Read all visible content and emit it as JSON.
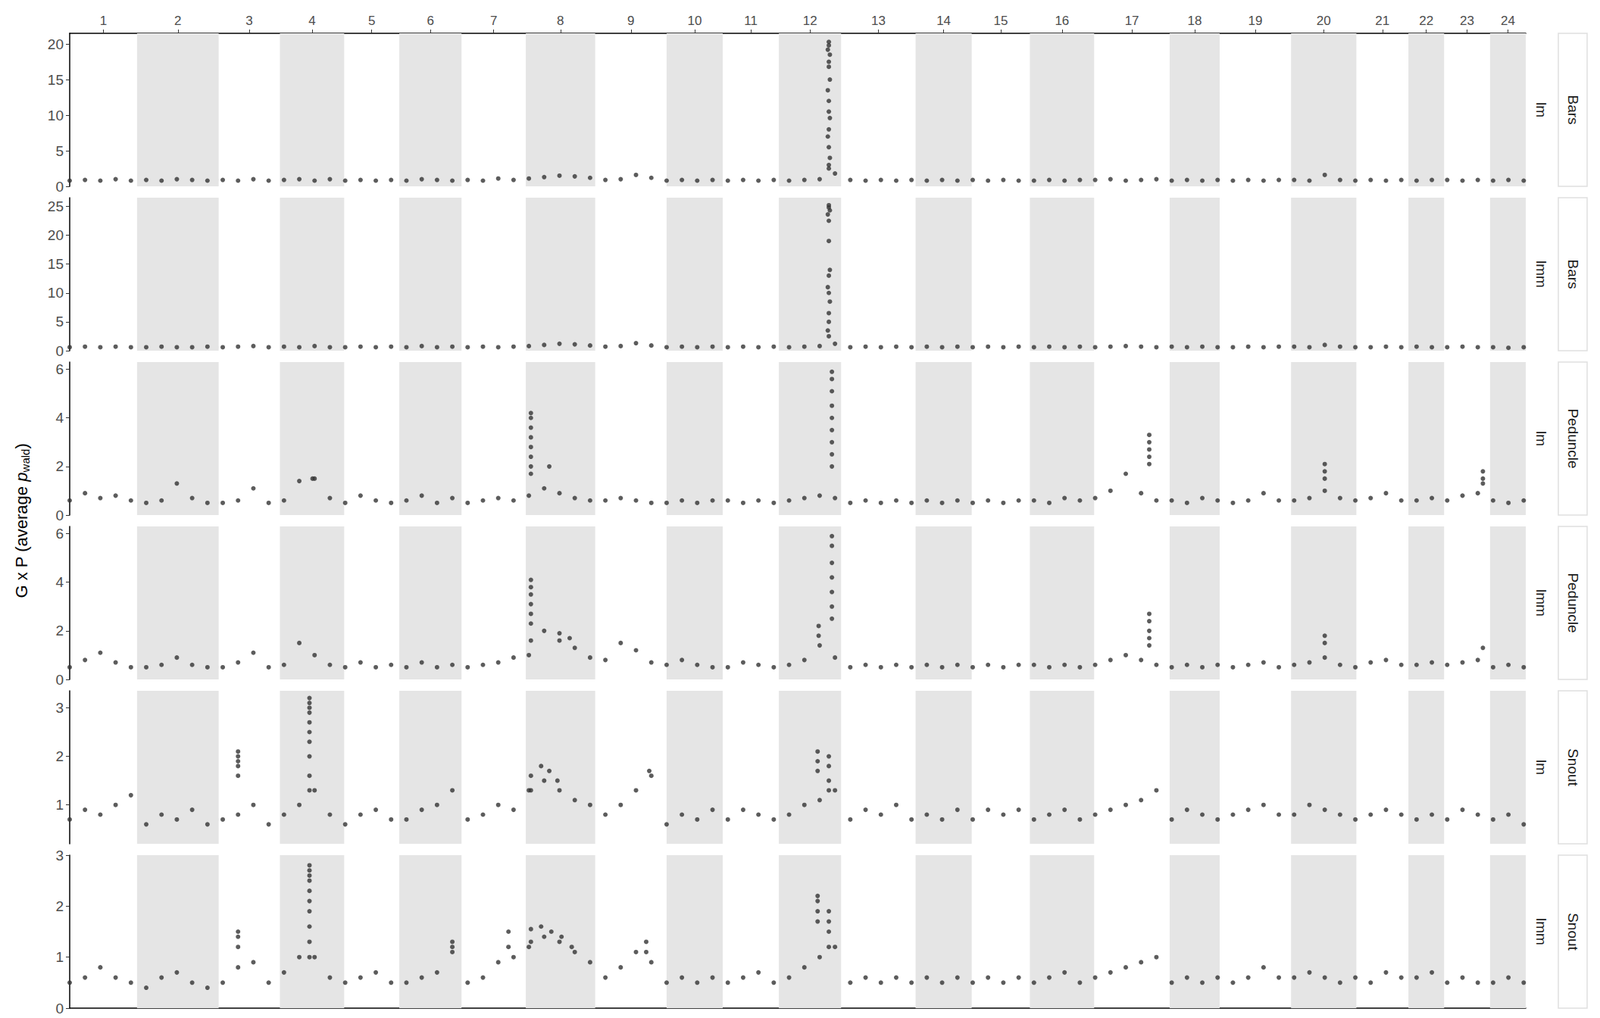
{
  "chart_data": {
    "type": "scatter",
    "ylabel": {
      "text": "G x P (average ",
      "italic": "p",
      "subscript": "wald",
      "close": ")"
    },
    "color": "#333333",
    "marker": "circle",
    "grid": false,
    "xlim": [
      0,
      1427
    ],
    "chromosomes": [
      {
        "label": "1",
        "start": 0,
        "end": 66
      },
      {
        "label": "2",
        "start": 66,
        "end": 146
      },
      {
        "label": "3",
        "start": 146,
        "end": 206
      },
      {
        "label": "4",
        "start": 206,
        "end": 269
      },
      {
        "label": "5",
        "start": 269,
        "end": 323
      },
      {
        "label": "6",
        "start": 323,
        "end": 384
      },
      {
        "label": "7",
        "start": 384,
        "end": 447
      },
      {
        "label": "8",
        "start": 447,
        "end": 515
      },
      {
        "label": "9",
        "start": 515,
        "end": 585
      },
      {
        "label": "10",
        "start": 585,
        "end": 640
      },
      {
        "label": "11",
        "start": 640,
        "end": 695
      },
      {
        "label": "12",
        "start": 695,
        "end": 756
      },
      {
        "label": "13",
        "start": 756,
        "end": 829
      },
      {
        "label": "14",
        "start": 829,
        "end": 884
      },
      {
        "label": "15",
        "start": 884,
        "end": 941
      },
      {
        "label": "16",
        "start": 941,
        "end": 1004
      },
      {
        "label": "17",
        "start": 1004,
        "end": 1078
      },
      {
        "label": "18",
        "start": 1078,
        "end": 1127
      },
      {
        "label": "19",
        "start": 1127,
        "end": 1197
      },
      {
        "label": "20",
        "start": 1197,
        "end": 1261
      },
      {
        "label": "21",
        "start": 1261,
        "end": 1312
      },
      {
        "label": "22",
        "start": 1312,
        "end": 1347
      },
      {
        "label": "23",
        "start": 1347,
        "end": 1392
      },
      {
        "label": "24",
        "start": 1392,
        "end": 1427
      }
    ],
    "x": [
      0,
      15,
      30,
      45,
      60,
      75,
      90,
      105,
      120,
      135,
      150,
      165,
      180,
      195,
      210,
      225,
      240,
      255,
      270,
      285,
      300,
      315,
      330,
      345,
      360,
      375,
      390,
      405,
      420,
      435,
      450,
      465,
      480,
      495,
      510,
      525,
      540,
      555,
      570,
      585,
      600,
      615,
      630,
      645,
      660,
      675,
      690,
      705,
      720,
      735,
      750,
      765,
      780,
      795,
      810,
      825,
      840,
      855,
      870,
      885,
      900,
      915,
      930,
      945,
      960,
      975,
      990,
      1005,
      1020,
      1035,
      1050,
      1065,
      1080,
      1095,
      1110,
      1125,
      1140,
      1155,
      1170,
      1185,
      1200,
      1215,
      1230,
      1245,
      1260,
      1275,
      1290,
      1305,
      1320,
      1335,
      1350,
      1365,
      1380,
      1395,
      1410,
      1425
    ],
    "panels": [
      {
        "trait": "Bars",
        "model": "lm",
        "ylim": [
          0,
          21.5
        ],
        "yticks": [
          0,
          5,
          10,
          15,
          20
        ],
        "values": [
          0.8,
          0.9,
          0.8,
          1.0,
          0.8,
          0.9,
          0.8,
          1.0,
          0.9,
          0.8,
          0.9,
          0.8,
          1.0,
          0.8,
          0.9,
          1.0,
          0.8,
          1.0,
          0.8,
          0.9,
          0.8,
          0.9,
          0.8,
          1.0,
          0.9,
          0.8,
          0.9,
          0.8,
          1.1,
          0.9,
          1.1,
          1.3,
          1.5,
          1.4,
          1.2,
          0.9,
          1.0,
          1.6,
          1.2,
          0.8,
          0.9,
          0.8,
          0.9,
          0.8,
          0.9,
          0.8,
          0.9,
          0.8,
          0.9,
          1.0,
          1.8,
          0.9,
          0.8,
          0.9,
          0.8,
          0.9,
          0.8,
          0.9,
          0.8,
          0.9,
          0.8,
          0.9,
          0.8,
          0.8,
          0.9,
          0.8,
          0.9,
          0.9,
          1.0,
          0.8,
          0.9,
          1.0,
          0.8,
          0.9,
          0.8,
          0.9,
          0.8,
          0.9,
          0.8,
          0.9,
          0.9,
          0.8,
          1.6,
          0.9,
          0.8,
          0.9,
          0.8,
          0.9,
          0.8,
          0.9,
          0.9,
          0.8,
          0.9,
          0.8,
          0.9,
          0.8
        ],
        "peaks": {
          "x": [
            744,
            744,
            743,
            745,
            744,
            744,
            745,
            743,
            744,
            744,
            745,
            744,
            743,
            744,
            745,
            744,
            744
          ],
          "values": [
            20.3,
            19.8,
            19.2,
            18.5,
            17.5,
            16.8,
            15,
            13.5,
            12,
            10.5,
            9.6,
            8,
            7,
            5.5,
            4,
            3,
            2.5
          ]
        }
      },
      {
        "trait": "Bars",
        "model": "lmm",
        "ylim": [
          0,
          26.5
        ],
        "yticks": [
          0,
          5,
          10,
          15,
          20,
          25
        ],
        "values": [
          0.6,
          0.7,
          0.6,
          0.7,
          0.6,
          0.6,
          0.7,
          0.6,
          0.6,
          0.7,
          0.6,
          0.7,
          0.8,
          0.6,
          0.7,
          0.6,
          0.8,
          0.6,
          0.6,
          0.7,
          0.6,
          0.7,
          0.6,
          0.8,
          0.6,
          0.7,
          0.6,
          0.7,
          0.6,
          0.7,
          0.8,
          1.0,
          1.2,
          1.1,
          0.9,
          0.7,
          0.8,
          1.3,
          0.9,
          0.6,
          0.7,
          0.6,
          0.7,
          0.6,
          0.7,
          0.6,
          0.7,
          0.6,
          0.7,
          0.8,
          1.2,
          0.6,
          0.7,
          0.6,
          0.7,
          0.6,
          0.7,
          0.6,
          0.7,
          0.6,
          0.7,
          0.6,
          0.7,
          0.6,
          0.7,
          0.6,
          0.7,
          0.6,
          0.7,
          0.8,
          0.7,
          0.6,
          0.7,
          0.6,
          0.7,
          0.6,
          0.6,
          0.7,
          0.6,
          0.7,
          0.7,
          0.6,
          1.0,
          0.7,
          0.6,
          0.6,
          0.7,
          0.6,
          0.7,
          0.6,
          0.6,
          0.7,
          0.6,
          0.6,
          0.5,
          0.6
        ],
        "peaks": {
          "x": [
            744,
            744,
            745,
            743,
            744,
            744,
            745,
            744,
            743,
            744,
            745,
            744,
            744,
            743,
            744
          ],
          "values": [
            25.2,
            24.8,
            24.3,
            23.6,
            22.5,
            19,
            14,
            13,
            11,
            10,
            8.5,
            6.5,
            5,
            3.5,
            2.5
          ]
        }
      },
      {
        "trait": "Peduncle",
        "model": "lm",
        "ylim": [
          0,
          6.3
        ],
        "yticks": [
          0,
          2,
          4,
          6
        ],
        "values": [
          0.6,
          0.9,
          0.7,
          0.8,
          0.6,
          0.5,
          0.6,
          1.3,
          0.7,
          0.5,
          0.5,
          0.6,
          1.1,
          0.5,
          0.6,
          1.4,
          1.5,
          0.7,
          0.5,
          0.8,
          0.6,
          0.5,
          0.6,
          0.8,
          0.5,
          0.7,
          0.5,
          0.6,
          0.7,
          0.6,
          0.8,
          1.1,
          0.9,
          0.7,
          0.6,
          0.6,
          0.7,
          0.6,
          0.5,
          0.5,
          0.6,
          0.5,
          0.6,
          0.6,
          0.5,
          0.6,
          0.5,
          0.6,
          0.7,
          0.8,
          0.7,
          0.5,
          0.6,
          0.5,
          0.6,
          0.5,
          0.6,
          0.5,
          0.6,
          0.5,
          0.6,
          0.5,
          0.6,
          0.6,
          0.5,
          0.7,
          0.6,
          0.7,
          1.0,
          1.7,
          0.9,
          0.6,
          0.6,
          0.5,
          0.7,
          0.6,
          0.5,
          0.6,
          0.9,
          0.6,
          0.6,
          0.7,
          1.0,
          0.7,
          0.6,
          0.7,
          0.9,
          0.6,
          0.6,
          0.7,
          0.6,
          0.8,
          0.9,
          0.6,
          0.5,
          0.6
        ],
        "peaks": {
          "x": [
            452,
            452,
            452,
            452,
            452,
            452,
            452,
            452,
            470,
            747,
            747,
            747,
            747,
            747,
            747,
            747,
            747,
            747,
            1058,
            1058,
            1058,
            1058,
            1058,
            1230,
            1230,
            1230,
            1385,
            1385,
            1385,
            238
          ],
          "values": [
            4.2,
            4.0,
            3.6,
            3.2,
            2.8,
            2.4,
            2.0,
            1.7,
            2.0,
            5.9,
            5.6,
            5.1,
            4.5,
            4.0,
            3.5,
            3.0,
            2.5,
            2.0,
            3.3,
            3.0,
            2.7,
            2.4,
            2.1,
            2.1,
            1.8,
            1.5,
            1.8,
            1.5,
            1.3,
            1.5
          ]
        }
      },
      {
        "trait": "Peduncle",
        "model": "lmm",
        "ylim": [
          0,
          6.3
        ],
        "yticks": [
          0,
          2,
          4,
          6
        ],
        "values": [
          0.5,
          0.8,
          1.1,
          0.7,
          0.5,
          0.5,
          0.6,
          0.9,
          0.6,
          0.5,
          0.5,
          0.7,
          1.1,
          0.5,
          0.6,
          1.5,
          1.0,
          0.6,
          0.5,
          0.7,
          0.5,
          0.6,
          0.5,
          0.7,
          0.5,
          0.6,
          0.5,
          0.6,
          0.7,
          0.9,
          1.0,
          2.0,
          1.6,
          1.3,
          0.9,
          0.8,
          1.5,
          1.2,
          0.7,
          0.6,
          0.8,
          0.6,
          0.5,
          0.5,
          0.7,
          0.6,
          0.5,
          0.6,
          0.8,
          1.4,
          0.9,
          0.5,
          0.6,
          0.5,
          0.6,
          0.5,
          0.6,
          0.5,
          0.6,
          0.5,
          0.6,
          0.5,
          0.6,
          0.6,
          0.5,
          0.6,
          0.5,
          0.6,
          0.8,
          1.0,
          0.8,
          0.6,
          0.5,
          0.6,
          0.5,
          0.6,
          0.5,
          0.6,
          0.7,
          0.5,
          0.6,
          0.7,
          0.9,
          0.6,
          0.5,
          0.7,
          0.8,
          0.6,
          0.6,
          0.7,
          0.6,
          0.7,
          0.8,
          0.5,
          0.6,
          0.5
        ],
        "peaks": {
          "x": [
            452,
            452,
            452,
            452,
            452,
            452,
            452,
            734,
            734,
            747,
            747,
            747,
            747,
            747,
            747,
            747,
            1058,
            1058,
            1058,
            1058,
            1058,
            1230,
            1230,
            1385,
            480,
            490
          ],
          "values": [
            4.1,
            3.8,
            3.5,
            3.1,
            2.7,
            2.3,
            1.6,
            2.2,
            1.8,
            5.9,
            5.5,
            4.8,
            4.2,
            3.6,
            3.0,
            2.5,
            2.7,
            2.4,
            2.0,
            1.7,
            1.4,
            1.8,
            1.5,
            1.3,
            1.9,
            1.7
          ]
        }
      },
      {
        "trait": "Snout",
        "model": "lm",
        "ylim": [
          0.2,
          3.35
        ],
        "yticks": [
          1,
          2,
          3
        ],
        "values": [
          0.7,
          0.9,
          0.8,
          1.0,
          1.2,
          0.6,
          0.8,
          0.7,
          0.9,
          0.6,
          0.7,
          0.8,
          1.0,
          0.6,
          0.8,
          1.0,
          1.3,
          0.8,
          0.6,
          0.8,
          0.9,
          0.7,
          0.7,
          0.9,
          1.0,
          1.3,
          0.7,
          0.8,
          1.0,
          0.9,
          1.3,
          1.5,
          1.3,
          1.1,
          1.0,
          0.8,
          1.0,
          1.3,
          1.6,
          0.6,
          0.8,
          0.7,
          0.9,
          0.7,
          0.9,
          0.8,
          0.7,
          0.8,
          1.0,
          1.1,
          1.3,
          0.7,
          0.9,
          0.8,
          1.0,
          0.7,
          0.8,
          0.7,
          0.9,
          0.7,
          0.9,
          0.8,
          0.9,
          0.7,
          0.8,
          0.9,
          0.7,
          0.8,
          0.9,
          1.0,
          1.1,
          1.3,
          0.7,
          0.9,
          0.8,
          0.7,
          0.8,
          0.9,
          1.0,
          0.8,
          0.8,
          1.0,
          0.9,
          0.8,
          0.7,
          0.8,
          0.9,
          0.8,
          0.7,
          0.8,
          0.7,
          0.9,
          0.8,
          0.7,
          0.8,
          0.6
        ],
        "peaks": {
          "x": [
            165,
            165,
            165,
            165,
            165,
            235,
            235,
            235,
            235,
            235,
            235,
            235,
            235,
            235,
            235,
            452,
            452,
            462,
            470,
            478,
            568,
            733,
            733,
            733,
            744,
            744,
            744,
            744
          ],
          "values": [
            2.1,
            2.0,
            1.9,
            1.8,
            1.6,
            3.2,
            3.1,
            3.0,
            2.9,
            2.7,
            2.5,
            2.3,
            2.0,
            1.6,
            1.3,
            1.6,
            1.3,
            1.8,
            1.7,
            1.5,
            1.7,
            2.1,
            1.9,
            1.7,
            2.0,
            1.8,
            1.5,
            1.3
          ]
        }
      },
      {
        "trait": "Snout",
        "model": "lmm",
        "ylim": [
          0,
          3
        ],
        "yticks": [
          0,
          1,
          2,
          3
        ],
        "values": [
          0.5,
          0.6,
          0.8,
          0.6,
          0.5,
          0.4,
          0.6,
          0.7,
          0.5,
          0.4,
          0.5,
          0.8,
          0.9,
          0.5,
          0.7,
          1.0,
          1.0,
          0.6,
          0.5,
          0.6,
          0.7,
          0.5,
          0.5,
          0.6,
          0.7,
          1.2,
          0.5,
          0.6,
          0.9,
          1.0,
          1.2,
          1.4,
          1.3,
          1.1,
          0.9,
          0.6,
          0.8,
          1.1,
          0.9,
          0.5,
          0.6,
          0.5,
          0.6,
          0.5,
          0.6,
          0.7,
          0.5,
          0.6,
          0.8,
          1.0,
          1.2,
          0.5,
          0.6,
          0.5,
          0.6,
          0.5,
          0.6,
          0.5,
          0.6,
          0.5,
          0.6,
          0.5,
          0.6,
          0.5,
          0.6,
          0.7,
          0.5,
          0.6,
          0.7,
          0.8,
          0.9,
          1.0,
          0.5,
          0.6,
          0.5,
          0.6,
          0.5,
          0.6,
          0.8,
          0.6,
          0.6,
          0.7,
          0.6,
          0.5,
          0.6,
          0.5,
          0.7,
          0.6,
          0.6,
          0.7,
          0.5,
          0.6,
          0.5,
          0.5,
          0.6,
          0.5
        ],
        "peaks": {
          "x": [
            165,
            165,
            165,
            235,
            235,
            235,
            235,
            235,
            235,
            235,
            235,
            235,
            235,
            375,
            375,
            430,
            430,
            452,
            452,
            462,
            472,
            482,
            492,
            565,
            565,
            733,
            733,
            733,
            733,
            744,
            744,
            744,
            744
          ],
          "values": [
            1.5,
            1.4,
            1.2,
            2.8,
            2.7,
            2.6,
            2.5,
            2.3,
            2.1,
            1.9,
            1.6,
            1.3,
            1.0,
            1.3,
            1.1,
            1.5,
            1.2,
            1.55,
            1.3,
            1.6,
            1.5,
            1.4,
            1.2,
            1.3,
            1.1,
            2.2,
            2.1,
            1.9,
            1.7,
            1.9,
            1.7,
            1.5,
            1.2
          ]
        }
      }
    ]
  }
}
